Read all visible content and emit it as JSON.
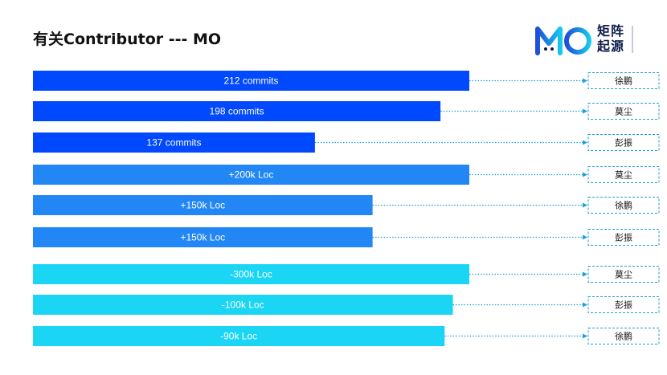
{
  "title": "有关Contributor --- MO",
  "logo": {
    "mark": "MO",
    "text": "矩阵起源"
  },
  "colors": {
    "commits": "#0049ff",
    "loc_add": "#2287f5",
    "loc_del": "#1ad5f4",
    "connector": "#1a9fd9"
  },
  "chart_data": {
    "type": "bar",
    "orientation": "horizontal",
    "xlim": [
      0,
      212
    ],
    "rows": [
      {
        "label": "212 commits",
        "value": 212,
        "group": "commits",
        "name": "徐鹏"
      },
      {
        "label": "198 commits",
        "value": 198,
        "group": "commits",
        "name": "莫尘"
      },
      {
        "label": "137 commits",
        "value": 137,
        "group": "commits",
        "name": "彭振"
      },
      {
        "label": "+200k Loc",
        "value": 212,
        "group": "loc_add",
        "name": "莫尘"
      },
      {
        "label": "+150k Loc",
        "value": 165,
        "group": "loc_add",
        "name": "徐鹏"
      },
      {
        "label": "+150k Loc",
        "value": 165,
        "group": "loc_add",
        "name": "彭振"
      },
      {
        "label": "-300k Loc",
        "value": 212,
        "group": "loc_del",
        "name": "莫尘"
      },
      {
        "label": "-100k Loc",
        "value": 204,
        "group": "loc_del",
        "name": "彭振"
      },
      {
        "label": "-90k Loc",
        "value": 200,
        "group": "loc_del",
        "name": "徐鹏"
      }
    ]
  }
}
